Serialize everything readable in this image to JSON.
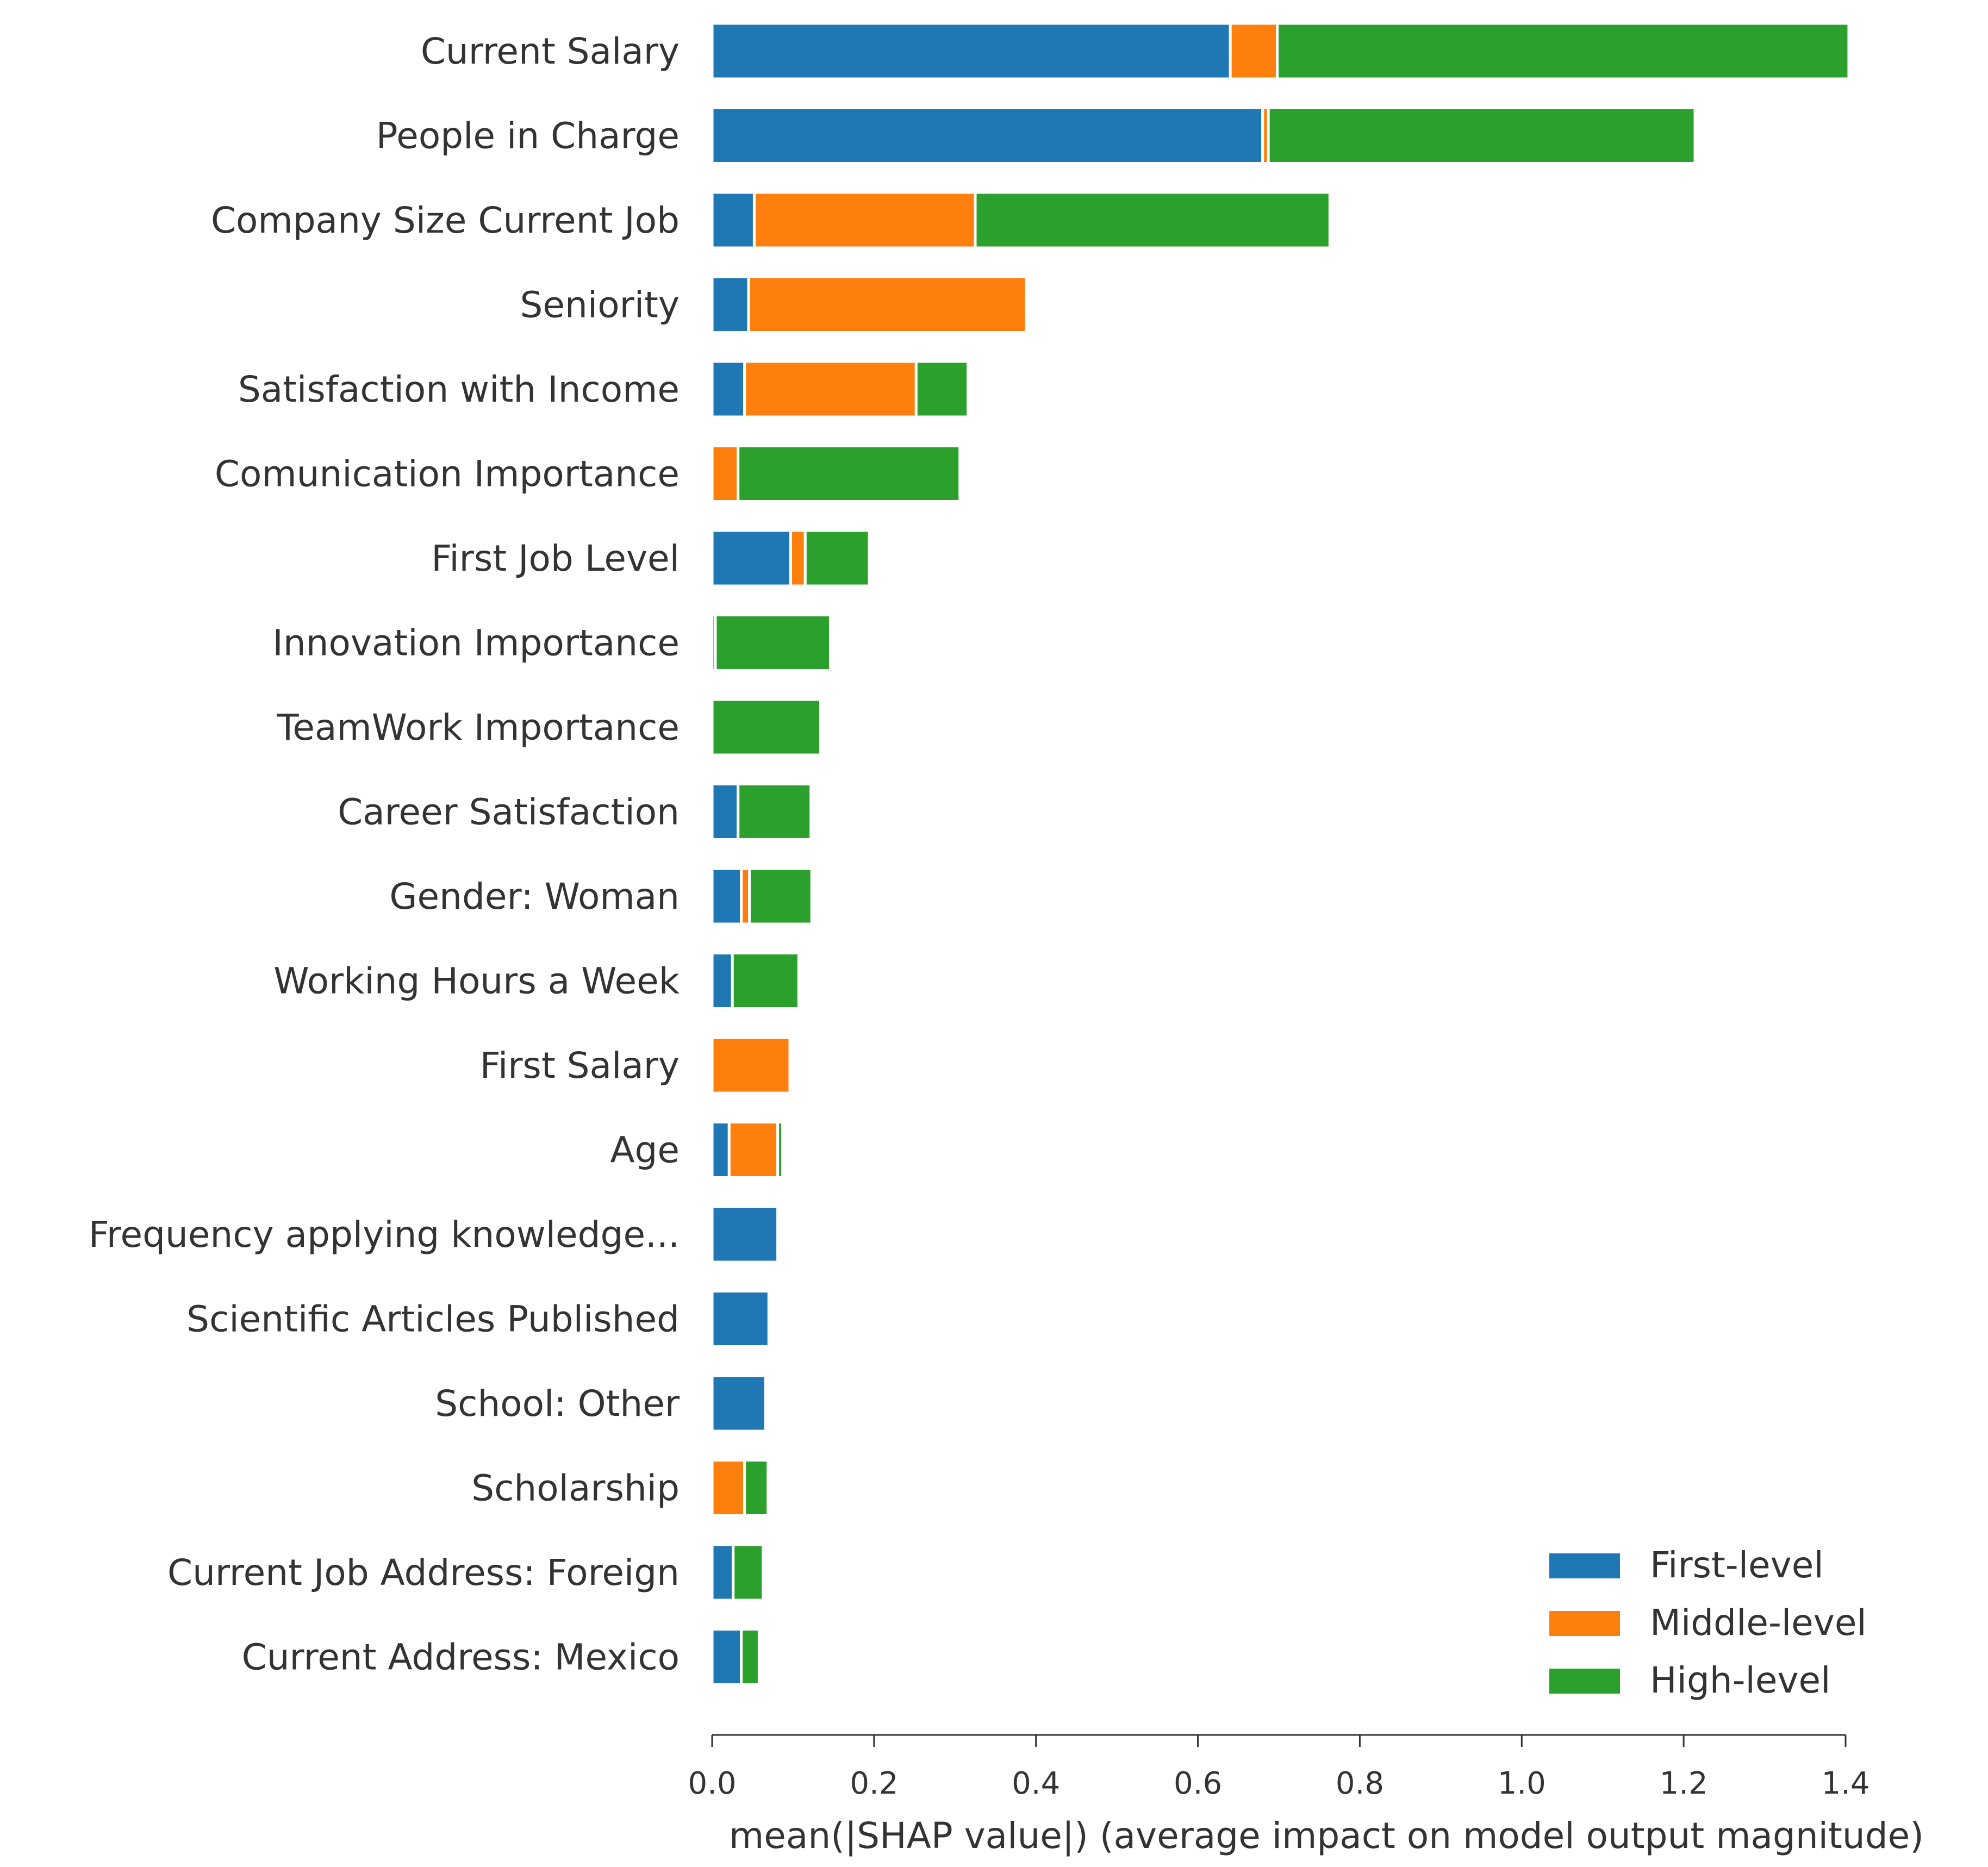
{
  "chart_data": {
    "type": "bar",
    "orientation": "horizontal",
    "stacked": true,
    "title": "",
    "xlabel": "mean(|SHAP value|) (average impact on model output magnitude)",
    "ylabel": "",
    "xlim": [
      0,
      1.4
    ],
    "xticks": [
      "0.0",
      "0.2",
      "0.4",
      "0.6",
      "0.8",
      "1.0",
      "1.2",
      "1.4"
    ],
    "grid": false,
    "legend_position": "bottom-right",
    "categories": [
      "Current Salary",
      "People in Charge",
      "Company Size Current Job",
      "Seniority",
      "Satisfaction with Income",
      "Comunication Importance",
      "First Job Level",
      "Innovation Importance",
      "TeamWork Importance",
      "Career Satisfaction",
      "Gender: Woman",
      "Working Hours a Week",
      "First Salary",
      "Age",
      "Frequency applying knowledge...",
      "Scientific Articles Published",
      "School: Other",
      "Scholarship",
      "Current Job Address: Foreign",
      "Current Address: Mexico"
    ],
    "series": [
      {
        "name": "First-level",
        "color": "#1f77b4",
        "values": [
          0.64,
          0.68,
          0.052,
          0.045,
          0.04,
          0.0,
          0.097,
          0.004,
          0.0,
          0.032,
          0.036,
          0.025,
          0.0,
          0.021,
          0.081,
          0.07,
          0.066,
          0.0,
          0.026,
          0.036
        ]
      },
      {
        "name": "Middle-level",
        "color": "#ff7f0e",
        "values": [
          0.058,
          0.007,
          0.273,
          0.343,
          0.212,
          0.032,
          0.018,
          0.0,
          0.0,
          0.0,
          0.01,
          0.0,
          0.096,
          0.06,
          0.0,
          0.0,
          0.0,
          0.04,
          0.0,
          0.0
        ]
      },
      {
        "name": "High-level",
        "color": "#2ca02c",
        "values": [
          0.706,
          0.527,
          0.438,
          0.0,
          0.064,
          0.274,
          0.079,
          0.142,
          0.134,
          0.09,
          0.077,
          0.082,
          0.0,
          0.006,
          0.0,
          0.0,
          0.0,
          0.029,
          0.037,
          0.022
        ]
      }
    ]
  }
}
